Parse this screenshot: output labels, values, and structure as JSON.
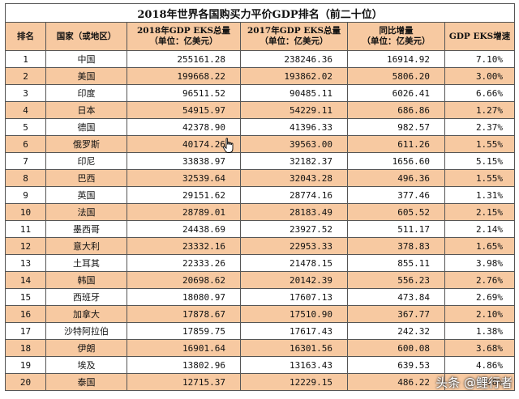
{
  "table": {
    "title": "2018年世界各国购买力平价GDP排名（前二十位）",
    "headers": {
      "rank": "排名",
      "country": "国家（或地区）",
      "gdp2018_line1": "2018年GDP  EKS总量",
      "gdp2018_line2": "（单位：亿美元）",
      "gdp2017_line1": "2017年GDP  EKS总量",
      "gdp2017_line2": "（单位：亿美元）",
      "increase_line1": "同比增量",
      "increase_line2": "（单位：亿美元）",
      "rate": "GDP  EKS增速"
    },
    "rows": [
      {
        "rank": "1",
        "country": "中国",
        "gdp2018": "255161.28",
        "gdp2017": "238246.36",
        "increase": "16914.92",
        "rate": "7.10%"
      },
      {
        "rank": "2",
        "country": "美国",
        "gdp2018": "199668.22",
        "gdp2017": "193862.02",
        "increase": "5806.20",
        "rate": "3.00%"
      },
      {
        "rank": "3",
        "country": "印度",
        "gdp2018": "96511.52",
        "gdp2017": "90485.11",
        "increase": "6026.41",
        "rate": "6.66%"
      },
      {
        "rank": "4",
        "country": "日本",
        "gdp2018": "54915.97",
        "gdp2017": "54229.11",
        "increase": "686.86",
        "rate": "1.27%"
      },
      {
        "rank": "5",
        "country": "德国",
        "gdp2018": "42378.90",
        "gdp2017": "41396.33",
        "increase": "982.57",
        "rate": "2.37%"
      },
      {
        "rank": "6",
        "country": "俄罗斯",
        "gdp2018": "40174.26",
        "gdp2017": "39563.00",
        "increase": "611.26",
        "rate": "1.55%"
      },
      {
        "rank": "7",
        "country": "印尼",
        "gdp2018": "33838.97",
        "gdp2017": "32182.37",
        "increase": "1656.60",
        "rate": "5.15%"
      },
      {
        "rank": "8",
        "country": "巴西",
        "gdp2018": "32539.64",
        "gdp2017": "32043.28",
        "increase": "496.36",
        "rate": "1.55%"
      },
      {
        "rank": "9",
        "country": "英国",
        "gdp2018": "29151.62",
        "gdp2017": "28774.16",
        "increase": "377.46",
        "rate": "1.31%"
      },
      {
        "rank": "10",
        "country": "法国",
        "gdp2018": "28789.01",
        "gdp2017": "28183.49",
        "increase": "605.52",
        "rate": "2.15%"
      },
      {
        "rank": "11",
        "country": "墨西哥",
        "gdp2018": "24438.69",
        "gdp2017": "23927.52",
        "increase": "511.17",
        "rate": "2.14%"
      },
      {
        "rank": "12",
        "country": "意大利",
        "gdp2018": "23332.16",
        "gdp2017": "22953.33",
        "increase": "378.83",
        "rate": "1.65%"
      },
      {
        "rank": "13",
        "country": "土耳其",
        "gdp2018": "22333.26",
        "gdp2017": "21478.15",
        "increase": "855.11",
        "rate": "3.98%"
      },
      {
        "rank": "14",
        "country": "韩国",
        "gdp2018": "20698.62",
        "gdp2017": "20142.39",
        "increase": "556.23",
        "rate": "2.76%"
      },
      {
        "rank": "15",
        "country": "西班牙",
        "gdp2018": "18080.97",
        "gdp2017": "17607.13",
        "increase": "473.84",
        "rate": "2.69%"
      },
      {
        "rank": "16",
        "country": "加拿大",
        "gdp2018": "17878.67",
        "gdp2017": "17510.90",
        "increase": "367.77",
        "rate": "2.10%"
      },
      {
        "rank": "17",
        "country": "沙特阿拉伯",
        "gdp2018": "17859.75",
        "gdp2017": "17617.43",
        "increase": "242.32",
        "rate": "1.38%"
      },
      {
        "rank": "18",
        "country": "伊朗",
        "gdp2018": "16901.64",
        "gdp2017": "16301.56",
        "increase": "600.08",
        "rate": "3.68%"
      },
      {
        "rank": "19",
        "country": "埃及",
        "gdp2018": "13802.96",
        "gdp2017": "13163.43",
        "increase": "639.53",
        "rate": "4.86%"
      },
      {
        "rank": "20",
        "country": "泰国",
        "gdp2018": "12715.37",
        "gdp2017": "12229.15",
        "increase": "486.22",
        "rate": "3.98%"
      }
    ]
  },
  "watermark": {
    "text": "头条 @鲤行者"
  },
  "colors": {
    "header_bg": "#f7c9a1",
    "stripe_bg": "#f7c9a1",
    "border": "#555555"
  },
  "icons": {
    "cursor": "hand-pointer-icon"
  }
}
